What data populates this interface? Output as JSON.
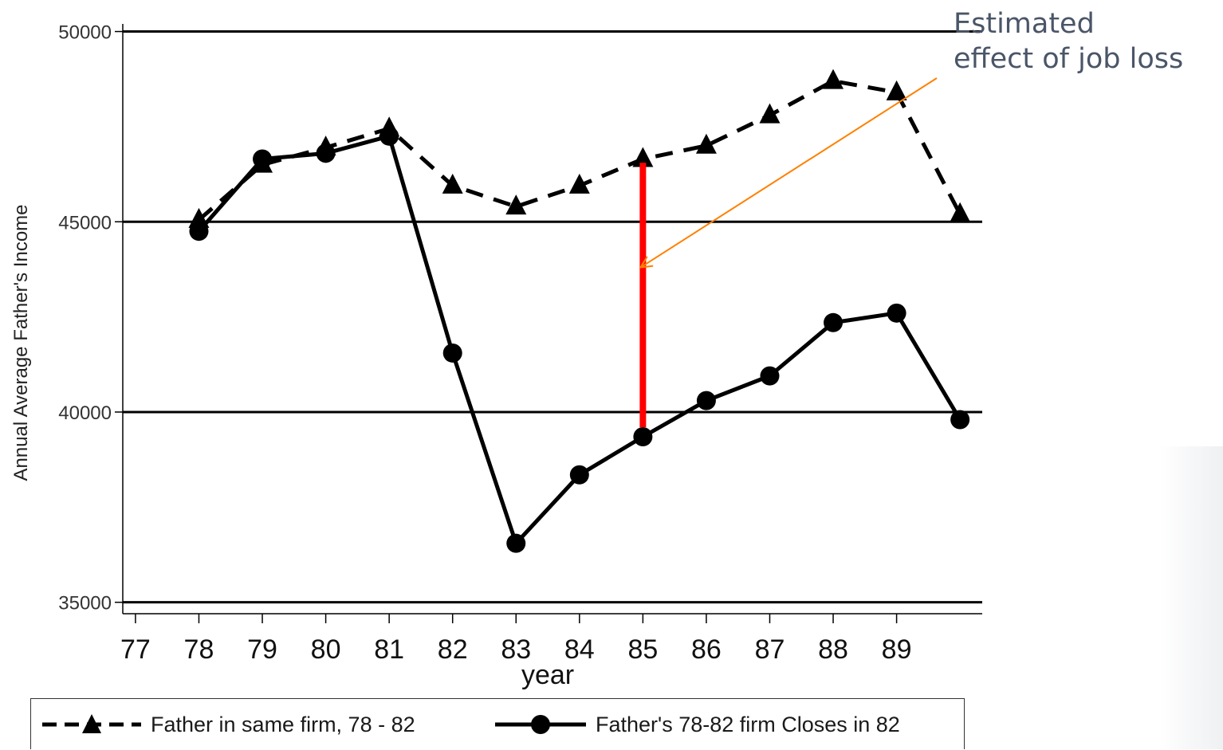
{
  "chart_data": {
    "type": "line",
    "categories": [
      "77",
      "78",
      "79",
      "80",
      "81",
      "82",
      "83",
      "84",
      "85",
      "86",
      "87",
      "88",
      "89"
    ],
    "x": [
      78,
      79,
      80,
      81,
      82,
      83,
      84,
      85,
      86,
      87,
      88,
      89,
      90
    ],
    "series": [
      {
        "name": "Father in same firm, 78 - 82",
        "style": "dashed",
        "marker": "triangle",
        "values": [
          45050,
          46500,
          46950,
          47450,
          45950,
          45400,
          45950,
          46650,
          47000,
          47800,
          48700,
          48400,
          45200
        ]
      },
      {
        "name": "Father's 78-82 firm Closes in 82",
        "style": "solid",
        "marker": "circle",
        "values": [
          44750,
          46650,
          46800,
          47250,
          41550,
          36550,
          38350,
          39350,
          40300,
          40950,
          42350,
          42600,
          39800
        ]
      }
    ],
    "ylabel": "Annual Average Father's Income",
    "xlabel": "year",
    "y_ticks": [
      35000,
      40000,
      45000,
      50000
    ],
    "y_tick_labels": [
      "35000",
      "40000",
      "45000",
      "50000"
    ],
    "ylim": [
      34700,
      50200
    ],
    "xlim": [
      76.8,
      90.35
    ],
    "grid": "horizontal",
    "legend_position": "bottom",
    "effect_bar": {
      "x": 85,
      "y_top": 46550,
      "y_bottom": 39600,
      "color": "#ff0000"
    },
    "annotation": {
      "lines": [
        "Estimated",
        "effect of job loss"
      ],
      "color": "#4a5568",
      "arrow_color": "#ff8000",
      "arrow_target": {
        "x": 85,
        "y": 43800
      }
    }
  }
}
